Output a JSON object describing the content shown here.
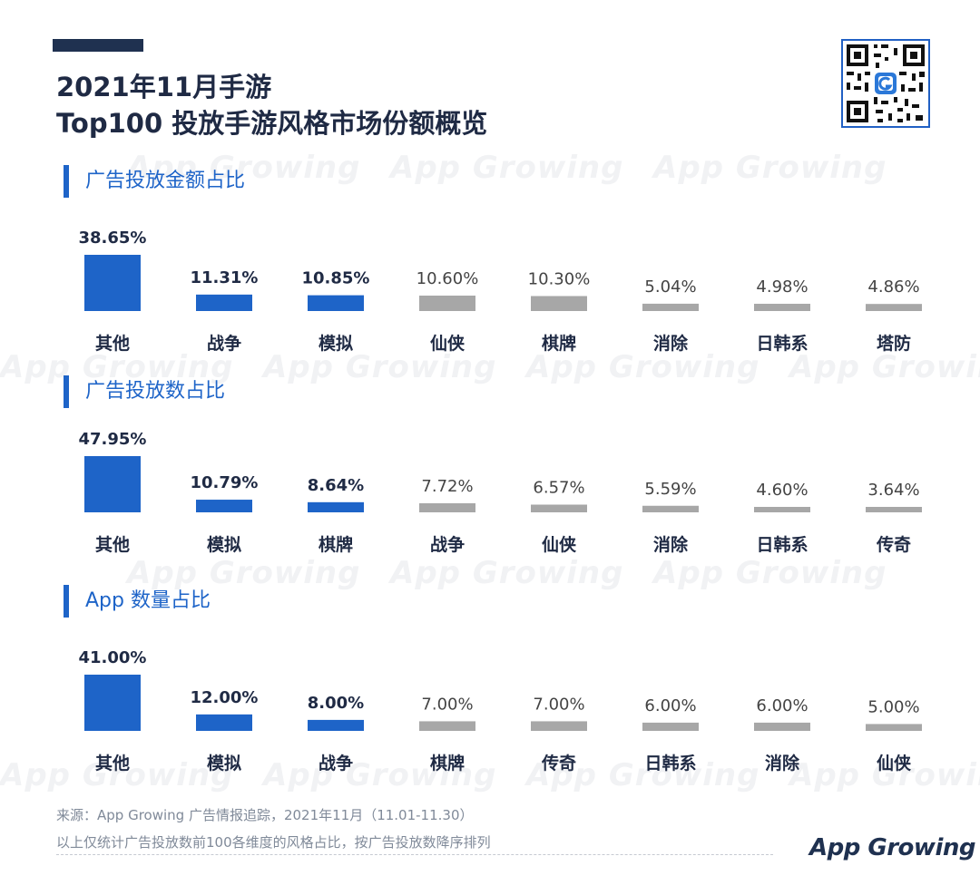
{
  "header": {
    "title_line1": "2021年11月手游",
    "title_line2": "Top100 投放手游风格市场份额概览"
  },
  "watermark_text": "App Growing",
  "logo_text": "App Growing",
  "colors": {
    "highlight": "#1e64c8",
    "muted": "#a7a7a7",
    "label": "#1f2a44",
    "value_muted": "#444444"
  },
  "chart_data": [
    {
      "type": "bar",
      "title": "广告投放金额占比",
      "categories": [
        "其他",
        "战争",
        "模拟",
        "仙侠",
        "棋牌",
        "消除",
        "日韩系",
        "塔防"
      ],
      "values": [
        38.65,
        11.31,
        10.85,
        10.6,
        10.3,
        5.04,
        4.98,
        4.86
      ],
      "labels": [
        "38.65%",
        "11.31%",
        "10.85%",
        "10.60%",
        "10.30%",
        "5.04%",
        "4.98%",
        "4.86%"
      ],
      "highlight_count": 3,
      "ylim": [
        0,
        38.65
      ]
    },
    {
      "type": "bar",
      "title": "广告投放数占比",
      "categories": [
        "其他",
        "模拟",
        "棋牌",
        "战争",
        "仙侠",
        "消除",
        "日韩系",
        "传奇"
      ],
      "values": [
        47.95,
        10.79,
        8.64,
        7.72,
        6.57,
        5.59,
        4.6,
        3.64
      ],
      "labels": [
        "47.95%",
        "10.79%",
        "8.64%",
        "7.72%",
        "6.57%",
        "5.59%",
        "4.60%",
        "3.64%"
      ],
      "highlight_count": 3,
      "ylim": [
        0,
        47.95
      ]
    },
    {
      "type": "bar",
      "title": "App 数量占比",
      "categories": [
        "其他",
        "模拟",
        "战争",
        "棋牌",
        "传奇",
        "日韩系",
        "消除",
        "仙侠"
      ],
      "values": [
        41.0,
        12.0,
        8.0,
        7.0,
        7.0,
        6.0,
        6.0,
        5.0
      ],
      "labels": [
        "41.00%",
        "12.00%",
        "8.00%",
        "7.00%",
        "7.00%",
        "6.00%",
        "6.00%",
        "5.00%"
      ],
      "highlight_count": 3,
      "ylim": [
        0,
        41.0
      ]
    }
  ],
  "footer": {
    "source": "来源：App Growing 广告情报追踪，2021年11月（11.01-11.30）",
    "note": "以上仅统计广告投放数前100各维度的风格占比，按广告投放数降序排列"
  }
}
